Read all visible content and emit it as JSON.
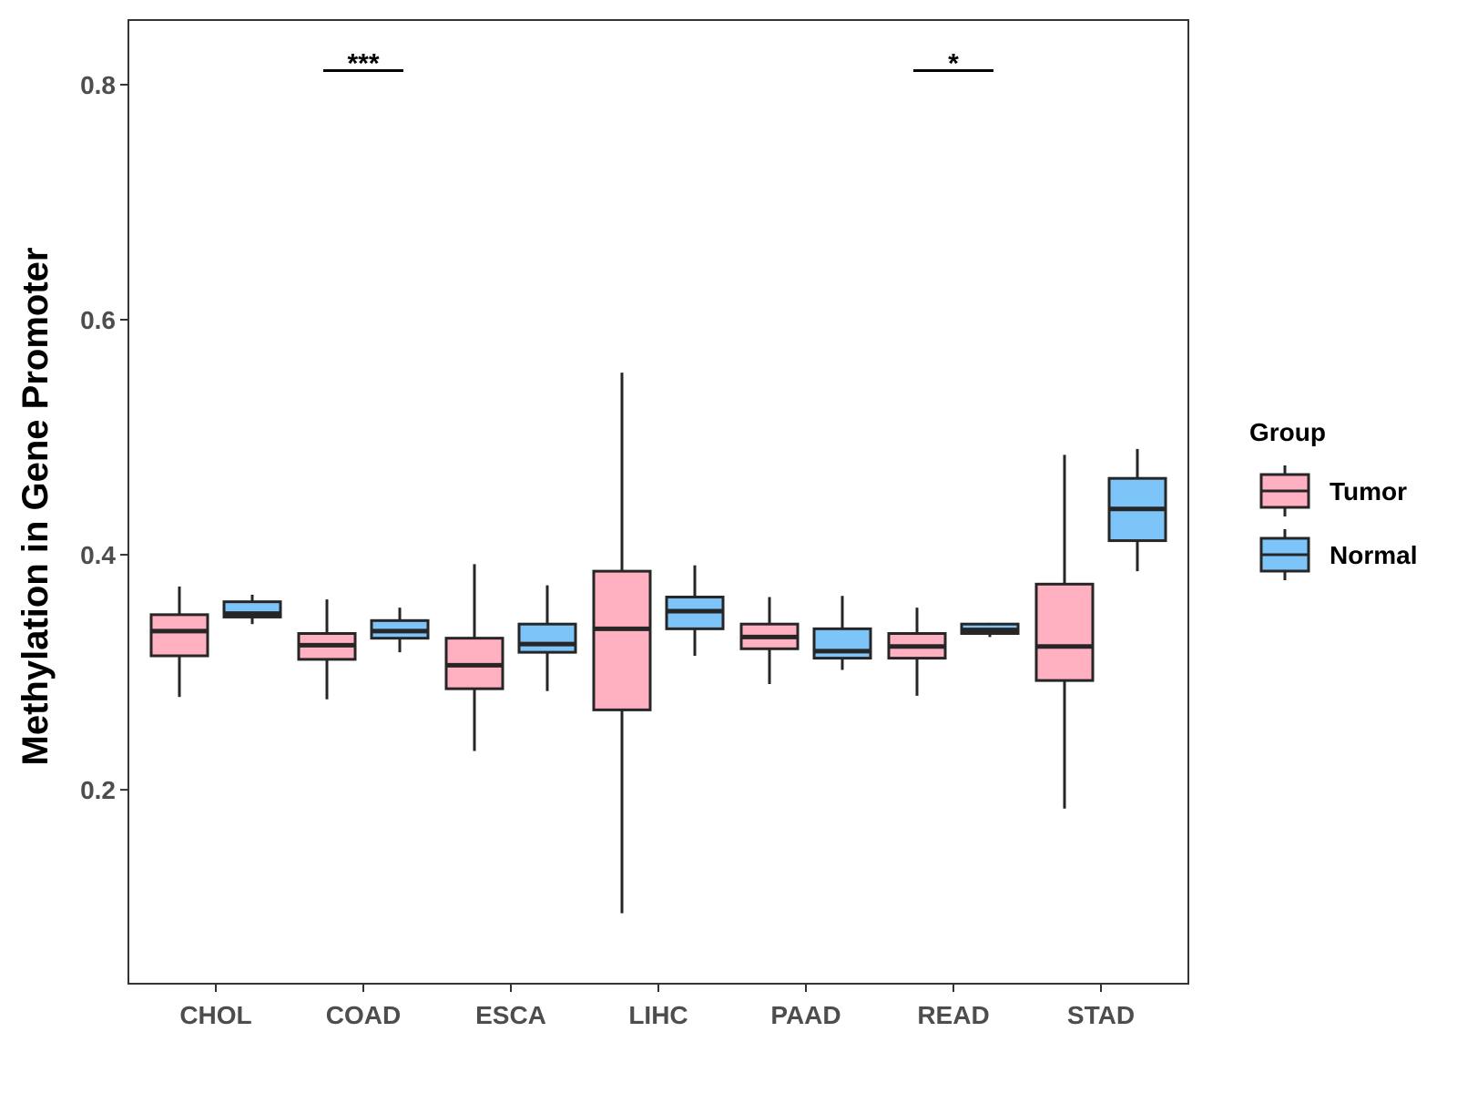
{
  "chart_data": {
    "type": "boxplot",
    "title": "",
    "xlabel": "",
    "ylabel": "Methylation in Gene Promoter",
    "ylim": [
      0.035,
      0.855
    ],
    "yticks": [
      0.2,
      0.4,
      0.6,
      0.8
    ],
    "ytick_labels": [
      "0.2",
      "0.4",
      "0.6",
      "0.8"
    ],
    "grid": false,
    "categories": [
      "CHOL",
      "COAD",
      "ESCA",
      "LIHC",
      "PAAD",
      "READ",
      "STAD"
    ],
    "legend": {
      "title": "Group",
      "position": "right",
      "entries": [
        "Tumor",
        "Normal"
      ]
    },
    "series": [
      {
        "name": "Tumor",
        "color": "#ffb0c1",
        "boxes": [
          {
            "category": "CHOL",
            "whisker_low": 0.279,
            "q1": 0.314,
            "median": 0.335,
            "q3": 0.349,
            "whisker_high": 0.373
          },
          {
            "category": "COAD",
            "whisker_low": 0.277,
            "q1": 0.311,
            "median": 0.323,
            "q3": 0.333,
            "whisker_high": 0.362
          },
          {
            "category": "ESCA",
            "whisker_low": 0.233,
            "q1": 0.286,
            "median": 0.306,
            "q3": 0.329,
            "whisker_high": 0.392
          },
          {
            "category": "LIHC",
            "whisker_low": 0.095,
            "q1": 0.268,
            "median": 0.337,
            "q3": 0.386,
            "whisker_high": 0.555
          },
          {
            "category": "PAAD",
            "whisker_low": 0.29,
            "q1": 0.32,
            "median": 0.33,
            "q3": 0.341,
            "whisker_high": 0.364
          },
          {
            "category": "READ",
            "whisker_low": 0.28,
            "q1": 0.312,
            "median": 0.322,
            "q3": 0.333,
            "whisker_high": 0.355
          },
          {
            "category": "STAD",
            "whisker_low": 0.184,
            "q1": 0.293,
            "median": 0.322,
            "q3": 0.375,
            "whisker_high": 0.485
          }
        ]
      },
      {
        "name": "Normal",
        "color": "#7dc4f8",
        "boxes": [
          {
            "category": "CHOL",
            "whisker_low": 0.341,
            "q1": 0.347,
            "median": 0.35,
            "q3": 0.36,
            "whisker_high": 0.366
          },
          {
            "category": "COAD",
            "whisker_low": 0.317,
            "q1": 0.329,
            "median": 0.335,
            "q3": 0.344,
            "whisker_high": 0.355
          },
          {
            "category": "ESCA",
            "whisker_low": 0.284,
            "q1": 0.317,
            "median": 0.324,
            "q3": 0.341,
            "whisker_high": 0.374
          },
          {
            "category": "LIHC",
            "whisker_low": 0.314,
            "q1": 0.337,
            "median": 0.352,
            "q3": 0.364,
            "whisker_high": 0.391
          },
          {
            "category": "PAAD",
            "whisker_low": 0.302,
            "q1": 0.312,
            "median": 0.318,
            "q3": 0.337,
            "whisker_high": 0.365
          },
          {
            "category": "READ",
            "whisker_low": 0.33,
            "q1": 0.333,
            "median": 0.336,
            "q3": 0.341,
            "whisker_high": 0.342
          },
          {
            "category": "STAD",
            "whisker_low": 0.386,
            "q1": 0.412,
            "median": 0.439,
            "q3": 0.465,
            "whisker_high": 0.49
          }
        ]
      }
    ],
    "annotations": [
      {
        "category": "COAD",
        "label": "***",
        "y": 0.812
      },
      {
        "category": "READ",
        "label": "*",
        "y": 0.812
      }
    ]
  }
}
